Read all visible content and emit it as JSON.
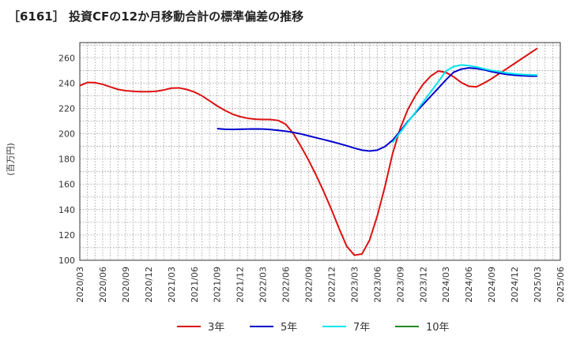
{
  "chart_data": {
    "type": "line",
    "title": "［6161］ 投資CFの12か月移動合計の標準偏差の推移",
    "ylabel": "(百万円)",
    "xlabel": "",
    "ylim": [
      100,
      272
    ],
    "yticks": [
      100,
      120,
      140,
      160,
      180,
      200,
      220,
      240,
      260
    ],
    "xticks": [
      "2020/03",
      "2020/06",
      "2020/09",
      "2020/12",
      "2021/03",
      "2021/06",
      "2021/09",
      "2021/12",
      "2022/03",
      "2022/06",
      "2022/09",
      "2022/12",
      "2023/03",
      "2023/06",
      "2023/09",
      "2023/12",
      "2024/03",
      "2024/06",
      "2024/09",
      "2024/12",
      "2025/03",
      "2025/06"
    ],
    "grid": true,
    "legend_position": "bottom",
    "series": [
      {
        "name": "3年",
        "color": "#dd1111",
        "points": [
          [
            "2020/03",
            238
          ],
          [
            "2020/04",
            240.5
          ],
          [
            "2020/05",
            240.3
          ],
          [
            "2020/06",
            239
          ],
          [
            "2020/07",
            237
          ],
          [
            "2020/08",
            235
          ],
          [
            "2020/09",
            234
          ],
          [
            "2020/10",
            233.5
          ],
          [
            "2020/11",
            233.2
          ],
          [
            "2020/12",
            233.2
          ],
          [
            "2021/01",
            233.5
          ],
          [
            "2021/02",
            234.5
          ],
          [
            "2021/03",
            236
          ],
          [
            "2021/04",
            236.2
          ],
          [
            "2021/05",
            235
          ],
          [
            "2021/06",
            233
          ],
          [
            "2021/07",
            230
          ],
          [
            "2021/08",
            226
          ],
          [
            "2021/09",
            222
          ],
          [
            "2021/10",
            218.5
          ],
          [
            "2021/11",
            215.5
          ],
          [
            "2021/12",
            213.5
          ],
          [
            "2022/01",
            212.2
          ],
          [
            "2022/02",
            211.5
          ],
          [
            "2022/03",
            211.2
          ],
          [
            "2022/04",
            211.2
          ],
          [
            "2022/05",
            210.5
          ],
          [
            "2022/06",
            207.5
          ],
          [
            "2022/07",
            200
          ],
          [
            "2022/08",
            190
          ],
          [
            "2022/09",
            179
          ],
          [
            "2022/10",
            167
          ],
          [
            "2022/11",
            154
          ],
          [
            "2022/12",
            140
          ],
          [
            "2023/01",
            125
          ],
          [
            "2023/02",
            111
          ],
          [
            "2023/03",
            104
          ],
          [
            "2023/04",
            105
          ],
          [
            "2023/05",
            116
          ],
          [
            "2023/06",
            135
          ],
          [
            "2023/07",
            158
          ],
          [
            "2023/08",
            184
          ],
          [
            "2023/09",
            204
          ],
          [
            "2023/10",
            219
          ],
          [
            "2023/11",
            230
          ],
          [
            "2023/12",
            239
          ],
          [
            "2024/01",
            245.5
          ],
          [
            "2024/02",
            249.5
          ],
          [
            "2024/03",
            248.5
          ],
          [
            "2024/04",
            245
          ],
          [
            "2024/05",
            240.5
          ],
          [
            "2024/06",
            237.5
          ],
          [
            "2024/07",
            237
          ],
          [
            "2024/08",
            240
          ],
          [
            "2024/09",
            243.5
          ],
          [
            "2024/10",
            247.5
          ],
          [
            "2024/11",
            251.5
          ],
          [
            "2024/12",
            255.5
          ],
          [
            "2025/01",
            259.5
          ],
          [
            "2025/02",
            263.5
          ],
          [
            "2025/03",
            267.5
          ]
        ]
      },
      {
        "name": "5年",
        "color": "#0000cc",
        "points": [
          [
            "2021/09",
            204
          ],
          [
            "2021/10",
            203.5
          ],
          [
            "2021/11",
            203.4
          ],
          [
            "2021/12",
            203.5
          ],
          [
            "2022/01",
            203.7
          ],
          [
            "2022/02",
            203.8
          ],
          [
            "2022/03",
            203.7
          ],
          [
            "2022/04",
            203.3
          ],
          [
            "2022/05",
            202.7
          ],
          [
            "2022/06",
            202
          ],
          [
            "2022/07",
            201
          ],
          [
            "2022/08",
            199.8
          ],
          [
            "2022/09",
            198.3
          ],
          [
            "2022/10",
            196.8
          ],
          [
            "2022/11",
            195.3
          ],
          [
            "2022/12",
            193.8
          ],
          [
            "2023/01",
            192.2
          ],
          [
            "2023/02",
            190.5
          ],
          [
            "2023/03",
            188.6
          ],
          [
            "2023/04",
            187
          ],
          [
            "2023/05",
            186.3
          ],
          [
            "2023/06",
            187
          ],
          [
            "2023/07",
            189.8
          ],
          [
            "2023/08",
            194.8
          ],
          [
            "2023/09",
            202
          ],
          [
            "2023/10",
            209.5
          ],
          [
            "2023/11",
            216.5
          ],
          [
            "2023/12",
            223
          ],
          [
            "2024/01",
            229.5
          ],
          [
            "2024/02",
            236
          ],
          [
            "2024/03",
            242.5
          ],
          [
            "2024/04",
            248.5
          ],
          [
            "2024/05",
            251
          ],
          [
            "2024/06",
            252
          ],
          [
            "2024/07",
            251.5
          ],
          [
            "2024/08",
            250.5
          ],
          [
            "2024/09",
            249
          ],
          [
            "2024/10",
            247.8
          ],
          [
            "2024/11",
            246.8
          ],
          [
            "2024/12",
            246.2
          ],
          [
            "2025/01",
            245.8
          ],
          [
            "2025/02",
            245.5
          ],
          [
            "2025/03",
            245.5
          ]
        ]
      },
      {
        "name": "7年",
        "color": "#00e5ee",
        "points": [
          [
            "2023/08",
            193
          ],
          [
            "2023/09",
            201
          ],
          [
            "2023/10",
            209
          ],
          [
            "2023/11",
            217
          ],
          [
            "2023/12",
            225
          ],
          [
            "2024/01",
            233
          ],
          [
            "2024/02",
            241
          ],
          [
            "2024/03",
            249.5
          ],
          [
            "2024/04",
            253
          ],
          [
            "2024/05",
            254.3
          ],
          [
            "2024/06",
            253.8
          ],
          [
            "2024/07",
            252.7
          ],
          [
            "2024/08",
            251.3
          ],
          [
            "2024/09",
            250
          ],
          [
            "2024/10",
            249
          ],
          [
            "2024/11",
            248
          ],
          [
            "2024/12",
            247.3
          ],
          [
            "2025/01",
            246.8
          ],
          [
            "2025/02",
            246.5
          ],
          [
            "2025/03",
            246.3
          ]
        ]
      },
      {
        "name": "10年",
        "color": "#228b22",
        "points": []
      }
    ]
  }
}
